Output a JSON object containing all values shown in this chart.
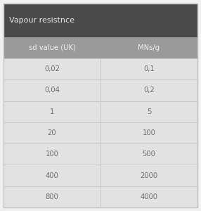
{
  "title": "Vapour resistnce",
  "title_bg": "#4a4a4a",
  "title_fg": "#e8e8e8",
  "header": [
    "sd value (UK)",
    "MNs/g"
  ],
  "header_bg": "#9a9a9a",
  "header_fg": "#f0f0f0",
  "rows": [
    [
      "0,02",
      "0,1"
    ],
    [
      "0,04",
      "0,2"
    ],
    [
      "1",
      "5"
    ],
    [
      "20",
      "100"
    ],
    [
      "100",
      "500"
    ],
    [
      "400",
      "2000"
    ],
    [
      "800",
      "4000"
    ]
  ],
  "row_bg": "#e2e2e2",
  "row_fg": "#707070",
  "divider_color": "#c8c8c8",
  "outer_bg": "#f0f0f0",
  "border_color": "#c0c0c0",
  "col_split": 0.5,
  "title_fontsize": 8.0,
  "header_fontsize": 7.2,
  "data_fontsize": 7.2
}
